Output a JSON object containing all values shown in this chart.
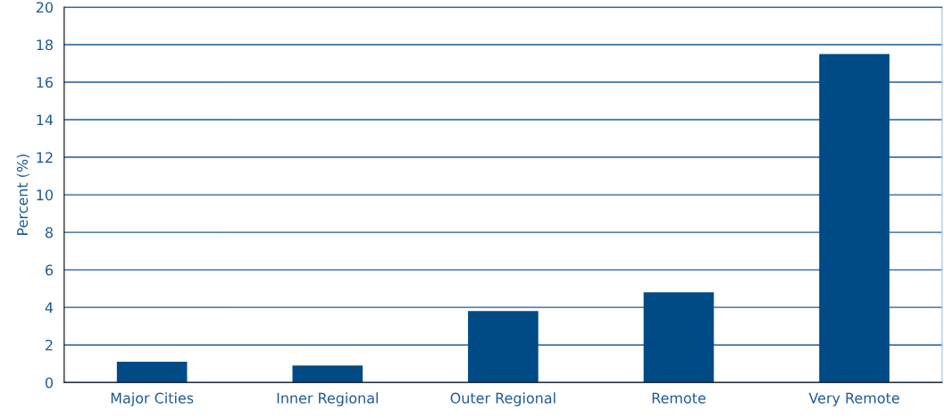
{
  "chart_data": {
    "type": "bar",
    "ylabel": "Percent (%)",
    "categories": [
      "Major Cities",
      "Inner Regional",
      "Outer Regional",
      "Remote",
      "Very Remote"
    ],
    "values": [
      1.1,
      0.9,
      3.8,
      4.8,
      17.5
    ],
    "color": "#004a86",
    "ylim": [
      0,
      20
    ],
    "yticks": [
      0,
      2,
      4,
      6,
      8,
      10,
      12,
      14,
      16,
      18,
      20
    ],
    "grid": "y"
  }
}
